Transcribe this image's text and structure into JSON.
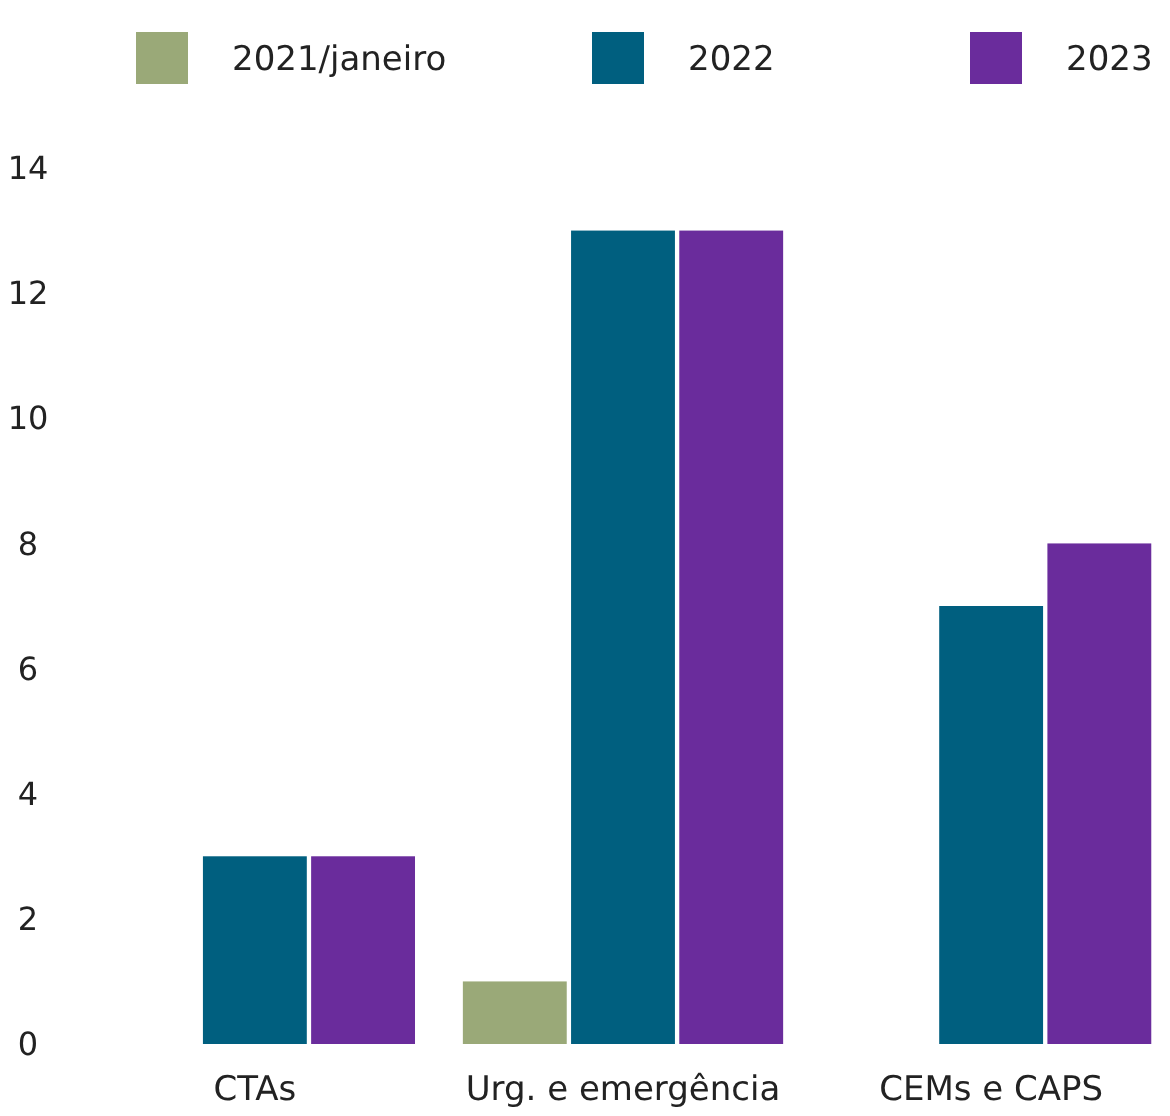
{
  "chart_data": {
    "type": "bar",
    "categories": [
      "CTAs",
      "Urg. e emergência",
      "CEMs e CAPS"
    ],
    "series": [
      {
        "name": "2021/janeiro",
        "color": "#9aa978",
        "values": [
          null,
          1,
          null
        ]
      },
      {
        "name": "2022",
        "color": "#005f7f",
        "values": [
          3,
          13,
          7
        ]
      },
      {
        "name": "2023",
        "color": "#6a2c9c",
        "values": [
          3,
          13,
          8
        ]
      }
    ],
    "ylim": [
      0,
      14
    ],
    "yticks": [
      0,
      2,
      4,
      6,
      8,
      10,
      12,
      14
    ],
    "grid": false,
    "legend": "top"
  }
}
